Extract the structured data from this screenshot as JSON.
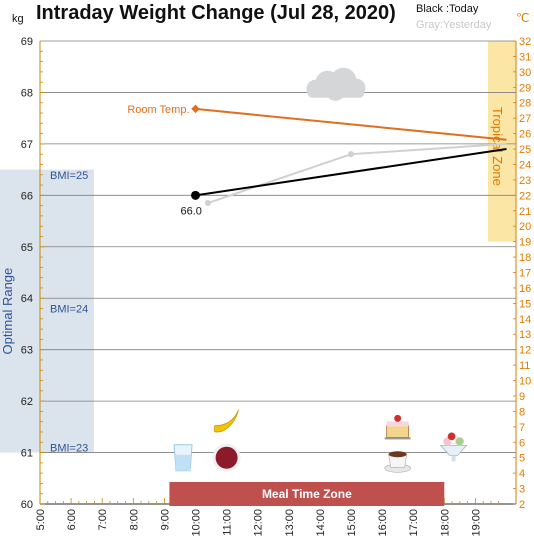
{
  "chart_data": {
    "type": "line",
    "title": "Intraday Weight Change (Jul 28, 2020)",
    "legend": {
      "today": "Black :Today",
      "yesterday": "Gray:Yesterday"
    },
    "y_left": {
      "unit": "kg",
      "min": 60,
      "max": 69,
      "ticks": [
        60,
        61,
        62,
        63,
        64,
        65,
        66,
        67,
        68,
        69
      ]
    },
    "y_right": {
      "unit": "℃",
      "min": 2,
      "max": 32,
      "ticks": [
        2,
        3,
        4,
        5,
        6,
        7,
        8,
        9,
        10,
        11,
        12,
        13,
        14,
        15,
        16,
        17,
        18,
        19,
        20,
        21,
        22,
        23,
        24,
        25,
        26,
        27,
        28,
        29,
        30,
        31,
        32
      ]
    },
    "x": {
      "ticks": [
        "5:00",
        "6:00",
        "7:00",
        "8:00",
        "9:00",
        "10:00",
        "11:00",
        "12:00",
        "13:00",
        "14:00",
        "15:00",
        "16:00",
        "17:00",
        "18:00",
        "19:00"
      ]
    },
    "series": [
      {
        "name": "Today",
        "color": "#000000",
        "points": [
          [
            10.0,
            66.0
          ],
          [
            20.0,
            66.9
          ]
        ],
        "label": "66.0"
      },
      {
        "name": "Yesterday",
        "color": "#d0d0d0",
        "points": [
          [
            10.4,
            65.85
          ],
          [
            15.0,
            66.8
          ],
          [
            20.0,
            67.0
          ]
        ]
      },
      {
        "name": "Room Temp.",
        "color": "#e07020",
        "axis": "right",
        "points": [
          [
            10.0,
            27.6
          ],
          [
            20.0,
            25.6
          ]
        ]
      }
    ],
    "bands": [
      {
        "label": "Optimal Range",
        "color": "#dbe3ec",
        "ymin": 61.0,
        "ymax": 66.5
      },
      {
        "label": "Tropical Zone",
        "color": "#fbe6a6",
        "axis": "right",
        "ymin": 19,
        "ymax": 32
      },
      {
        "label": "Meal Time Zone",
        "color": "#c0504d",
        "xmin": 9.0,
        "xmax": 18.0
      }
    ],
    "bmi_labels": [
      {
        "text": "BMI=25",
        "y": 66.4
      },
      {
        "text": "BMI=24",
        "y": 63.8
      },
      {
        "text": "BMI=23",
        "y": 61.1
      }
    ],
    "icons": [
      {
        "name": "cloud-icon",
        "x": 14.5,
        "y": 68.15
      },
      {
        "name": "water-glass-icon",
        "x": 9.6,
        "y": 60.9
      },
      {
        "name": "banana-icon",
        "x": 11.0,
        "y": 61.6
      },
      {
        "name": "soup-bowl-icon",
        "x": 11.0,
        "y": 60.9
      },
      {
        "name": "cake-icon",
        "x": 16.5,
        "y": 61.45
      },
      {
        "name": "coffee-cup-icon",
        "x": 16.5,
        "y": 60.85
      },
      {
        "name": "ice-cream-icon",
        "x": 18.3,
        "y": 61.1
      }
    ],
    "grid": true
  }
}
